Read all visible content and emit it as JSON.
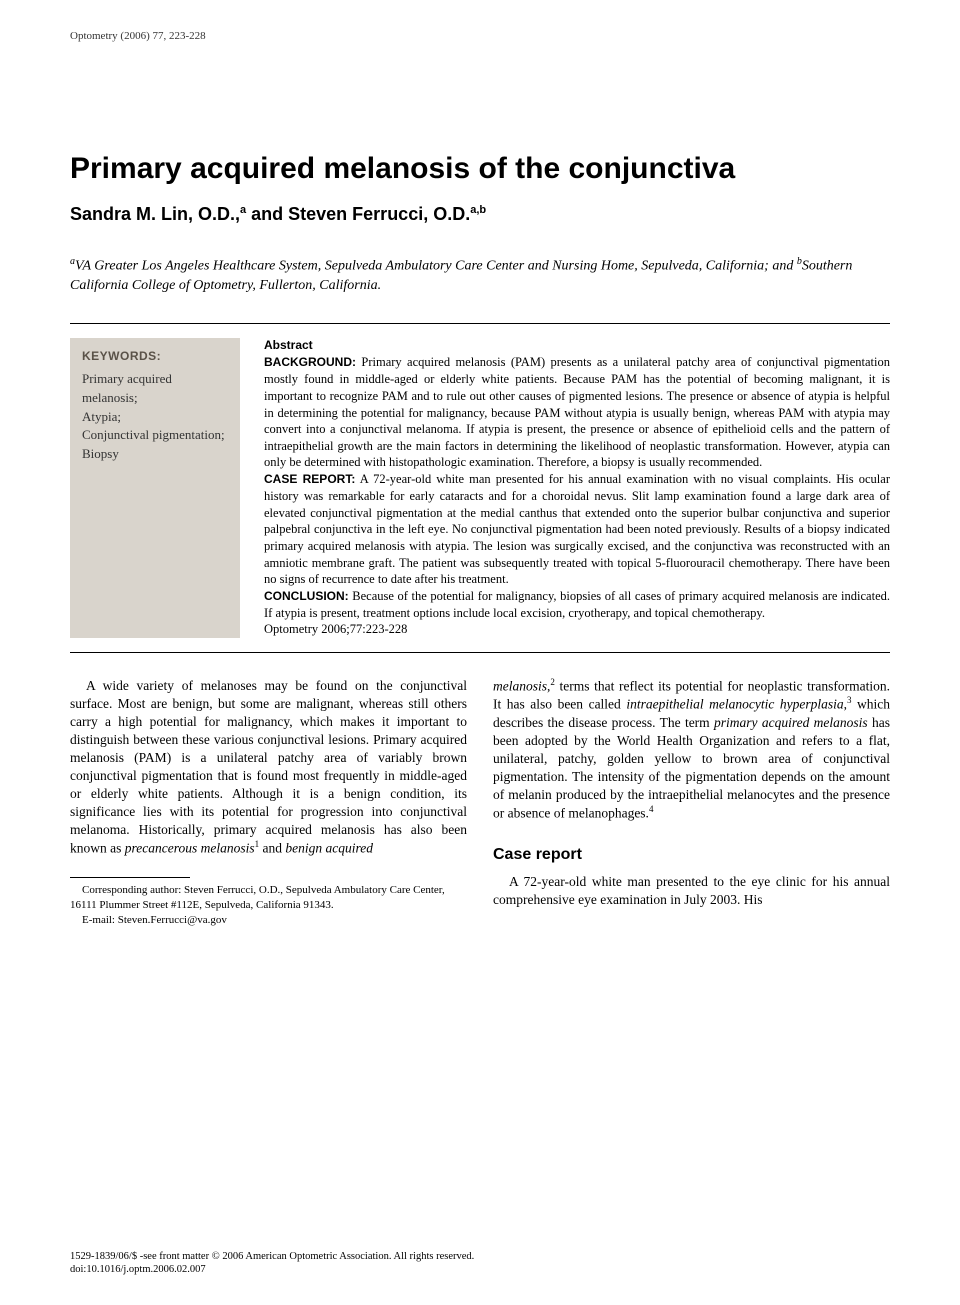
{
  "journal_header": "Optometry (2006) 77, 223-228",
  "title": "Primary acquired melanosis of the conjunctiva",
  "authors_html": "Sandra M. Lin, O.D.,<sup>a</sup> and Steven Ferrucci, O.D.<sup>a,b</sup>",
  "affiliations_html": "<sup>a</sup>VA Greater Los Angeles Healthcare System, Sepulveda Ambulatory Care Center and Nursing Home, Sepulveda, California; and <sup>b</sup>Southern California College of Optometry, Fullerton, California.",
  "keywords": {
    "label": "KEYWORDS:",
    "items": [
      "Primary acquired melanosis;",
      "Atypia;",
      "Conjunctival pigmentation;",
      "Biopsy"
    ]
  },
  "abstract": {
    "heading": "Abstract",
    "background_label": "BACKGROUND:",
    "background_text": " Primary acquired melanosis (PAM) presents as a unilateral patchy area of conjunctival pigmentation mostly found in middle-aged or elderly white patients. Because PAM has the potential of becoming malignant, it is important to recognize PAM and to rule out other causes of pigmented lesions. The presence or absence of atypia is helpful in determining the potential for malignancy, because PAM without atypia is usually benign, whereas PAM with atypia may convert into a conjunctival melanoma. If atypia is present, the presence or absence of epithelioid cells and the pattern of intraepithelial growth are the main factors in determining the likelihood of neoplastic transformation. However, atypia can only be determined with histopathologic examination. Therefore, a biopsy is usually recommended.",
    "case_label": "CASE REPORT:",
    "case_text": " A 72-year-old white man presented for his annual examination with no visual complaints. His ocular history was remarkable for early cataracts and for a choroidal nevus. Slit lamp examination found a large dark area of elevated conjunctival pigmentation at the medial canthus that extended onto the superior bulbar conjunctiva and superior palpebral conjunctiva in the left eye. No conjunctival pigmentation had been noted previously. Results of a biopsy indicated primary acquired melanosis with atypia. The lesion was surgically excised, and the conjunctiva was reconstructed with an amniotic membrane graft. The patient was subsequently treated with topical 5-fluorouracil chemotherapy. There have been no signs of recurrence to date after his treatment.",
    "conclusion_label": "CONCLUSION:",
    "conclusion_text": " Because of the potential for malignancy, biopsies of all cases of primary acquired melanosis are indicated. If atypia is present, treatment options include local excision, cryotherapy, and topical chemotherapy.",
    "citation": "Optometry 2006;77:223-228"
  },
  "body": {
    "col1_para1_html": "A wide variety of melanoses may be found on the conjunctival surface. Most are benign, but some are malignant, whereas still others carry a high potential for malignancy, which makes it important to distinguish between these various conjunctival lesions. Primary acquired melanosis (PAM) is a unilateral patchy area of variably brown conjunctival pigmentation that is found most frequently in middle-aged or elderly white patients. Although it is a benign condition, its significance lies with its potential for progression into conjunctival melanoma. Historically, primary acquired melanosis has also been known as <span class=\"italic\">precancerous melanosis</span><span class=\"sup-ref\">1</span> and <span class=\"italic\">benign acquired</span>",
    "col2_para1_html": "<span class=\"italic\">melanosis</span>,<span class=\"sup-ref\">2</span> terms that reflect its potential for neoplastic transformation. It has also been called <span class=\"italic\">intraepithelial melanocytic hyperplasia</span>,<span class=\"sup-ref\">3</span> which describes the disease process. The term <span class=\"italic\">primary acquired melanosis</span> has been adopted by the World Health Organization and refers to a flat, unilateral, patchy, golden yellow to brown area of conjunctival pigmentation. The intensity of the pigmentation depends on the amount of melanin produced by the intraepithelial melanocytes and the presence or absence of melanophages.<span class=\"sup-ref\">4</span>",
    "case_heading": "Case report",
    "col2_para2_html": "A 72-year-old white man presented to the eye clinic for his annual comprehensive eye examination in July 2003. His"
  },
  "footnote": {
    "line1": "Corresponding author: Steven Ferrucci, O.D., Sepulveda Ambulatory Care Center, 16111 Plummer Street #112E, Sepulveda, California 91343.",
    "line2": "E-mail: Steven.Ferrucci@va.gov"
  },
  "footer": {
    "line1": "1529-1839/06/$ -see front matter © 2006 American Optometric Association. All rights reserved.",
    "line2": "doi:10.1016/j.optm.2006.02.007"
  },
  "colors": {
    "text": "#000000",
    "keywords_bg": "#d9d4cc",
    "keywords_label": "#5a5248",
    "background": "#ffffff"
  },
  "fonts": {
    "serif": "Georgia, Times New Roman, serif",
    "sans": "Arial, Helvetica, sans-serif",
    "title_size_pt": 22,
    "authors_size_pt": 13,
    "body_size_pt": 10,
    "abstract_size_pt": 9
  }
}
